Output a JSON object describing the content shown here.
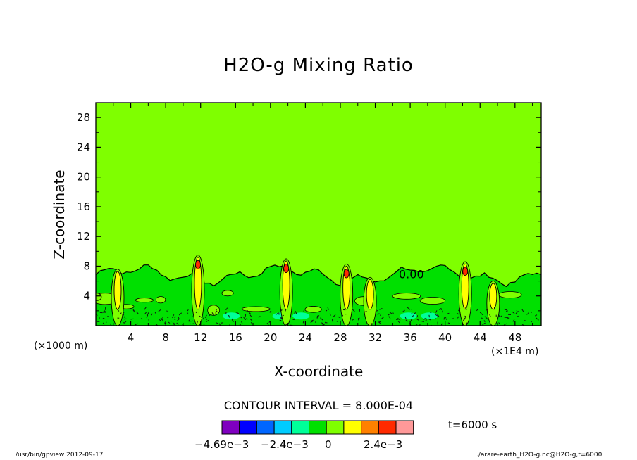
{
  "chart_data": {
    "type": "heatmap",
    "title": "H2O-g Mixing Ratio",
    "xlabel": "X-coordinate",
    "ylabel": "Z-coordinate",
    "x_unit_left": "(×1000 m)",
    "x_unit_right": "(×1E4 m)",
    "xlim": [
      0,
      51
    ],
    "ylim": [
      0,
      30
    ],
    "x_ticks": [
      4,
      8,
      12,
      16,
      20,
      24,
      28,
      32,
      36,
      40,
      44,
      48
    ],
    "y_ticks": [
      4,
      8,
      12,
      16,
      20,
      24,
      28
    ],
    "contour_label": "0.00",
    "contour_interval": "CONTOUR INTERVAL = 8.000E-04",
    "time": "t=6000 s",
    "background_level_color": "#7fff00",
    "anomaly_layer_top": 7,
    "columns": [
      {
        "x": 2.5,
        "top": 7.6
      },
      {
        "x": 11.7,
        "top": 9.5
      },
      {
        "x": 21.8,
        "top": 9.0
      },
      {
        "x": 28.7,
        "top": 8.3
      },
      {
        "x": 31.4,
        "top": 6.5
      },
      {
        "x": 42.3,
        "top": 8.6
      },
      {
        "x": 45.5,
        "top": 6.0
      }
    ],
    "legend": {
      "colors": [
        "#7f00bf",
        "#0000ff",
        "#0066ff",
        "#00ccff",
        "#00ff99",
        "#00e000",
        "#7fff00",
        "#ffff00",
        "#ff8000",
        "#ff2a00",
        "#ff9999"
      ],
      "labels": [
        "−4.69e−3",
        "−2.4e−3",
        "0",
        "2.4e−3"
      ]
    }
  },
  "footer": {
    "left": "/usr/bin/gpview   2012-09-17",
    "right": "./arare-earth_H2O-g.nc@H2O-g,t=6000"
  }
}
